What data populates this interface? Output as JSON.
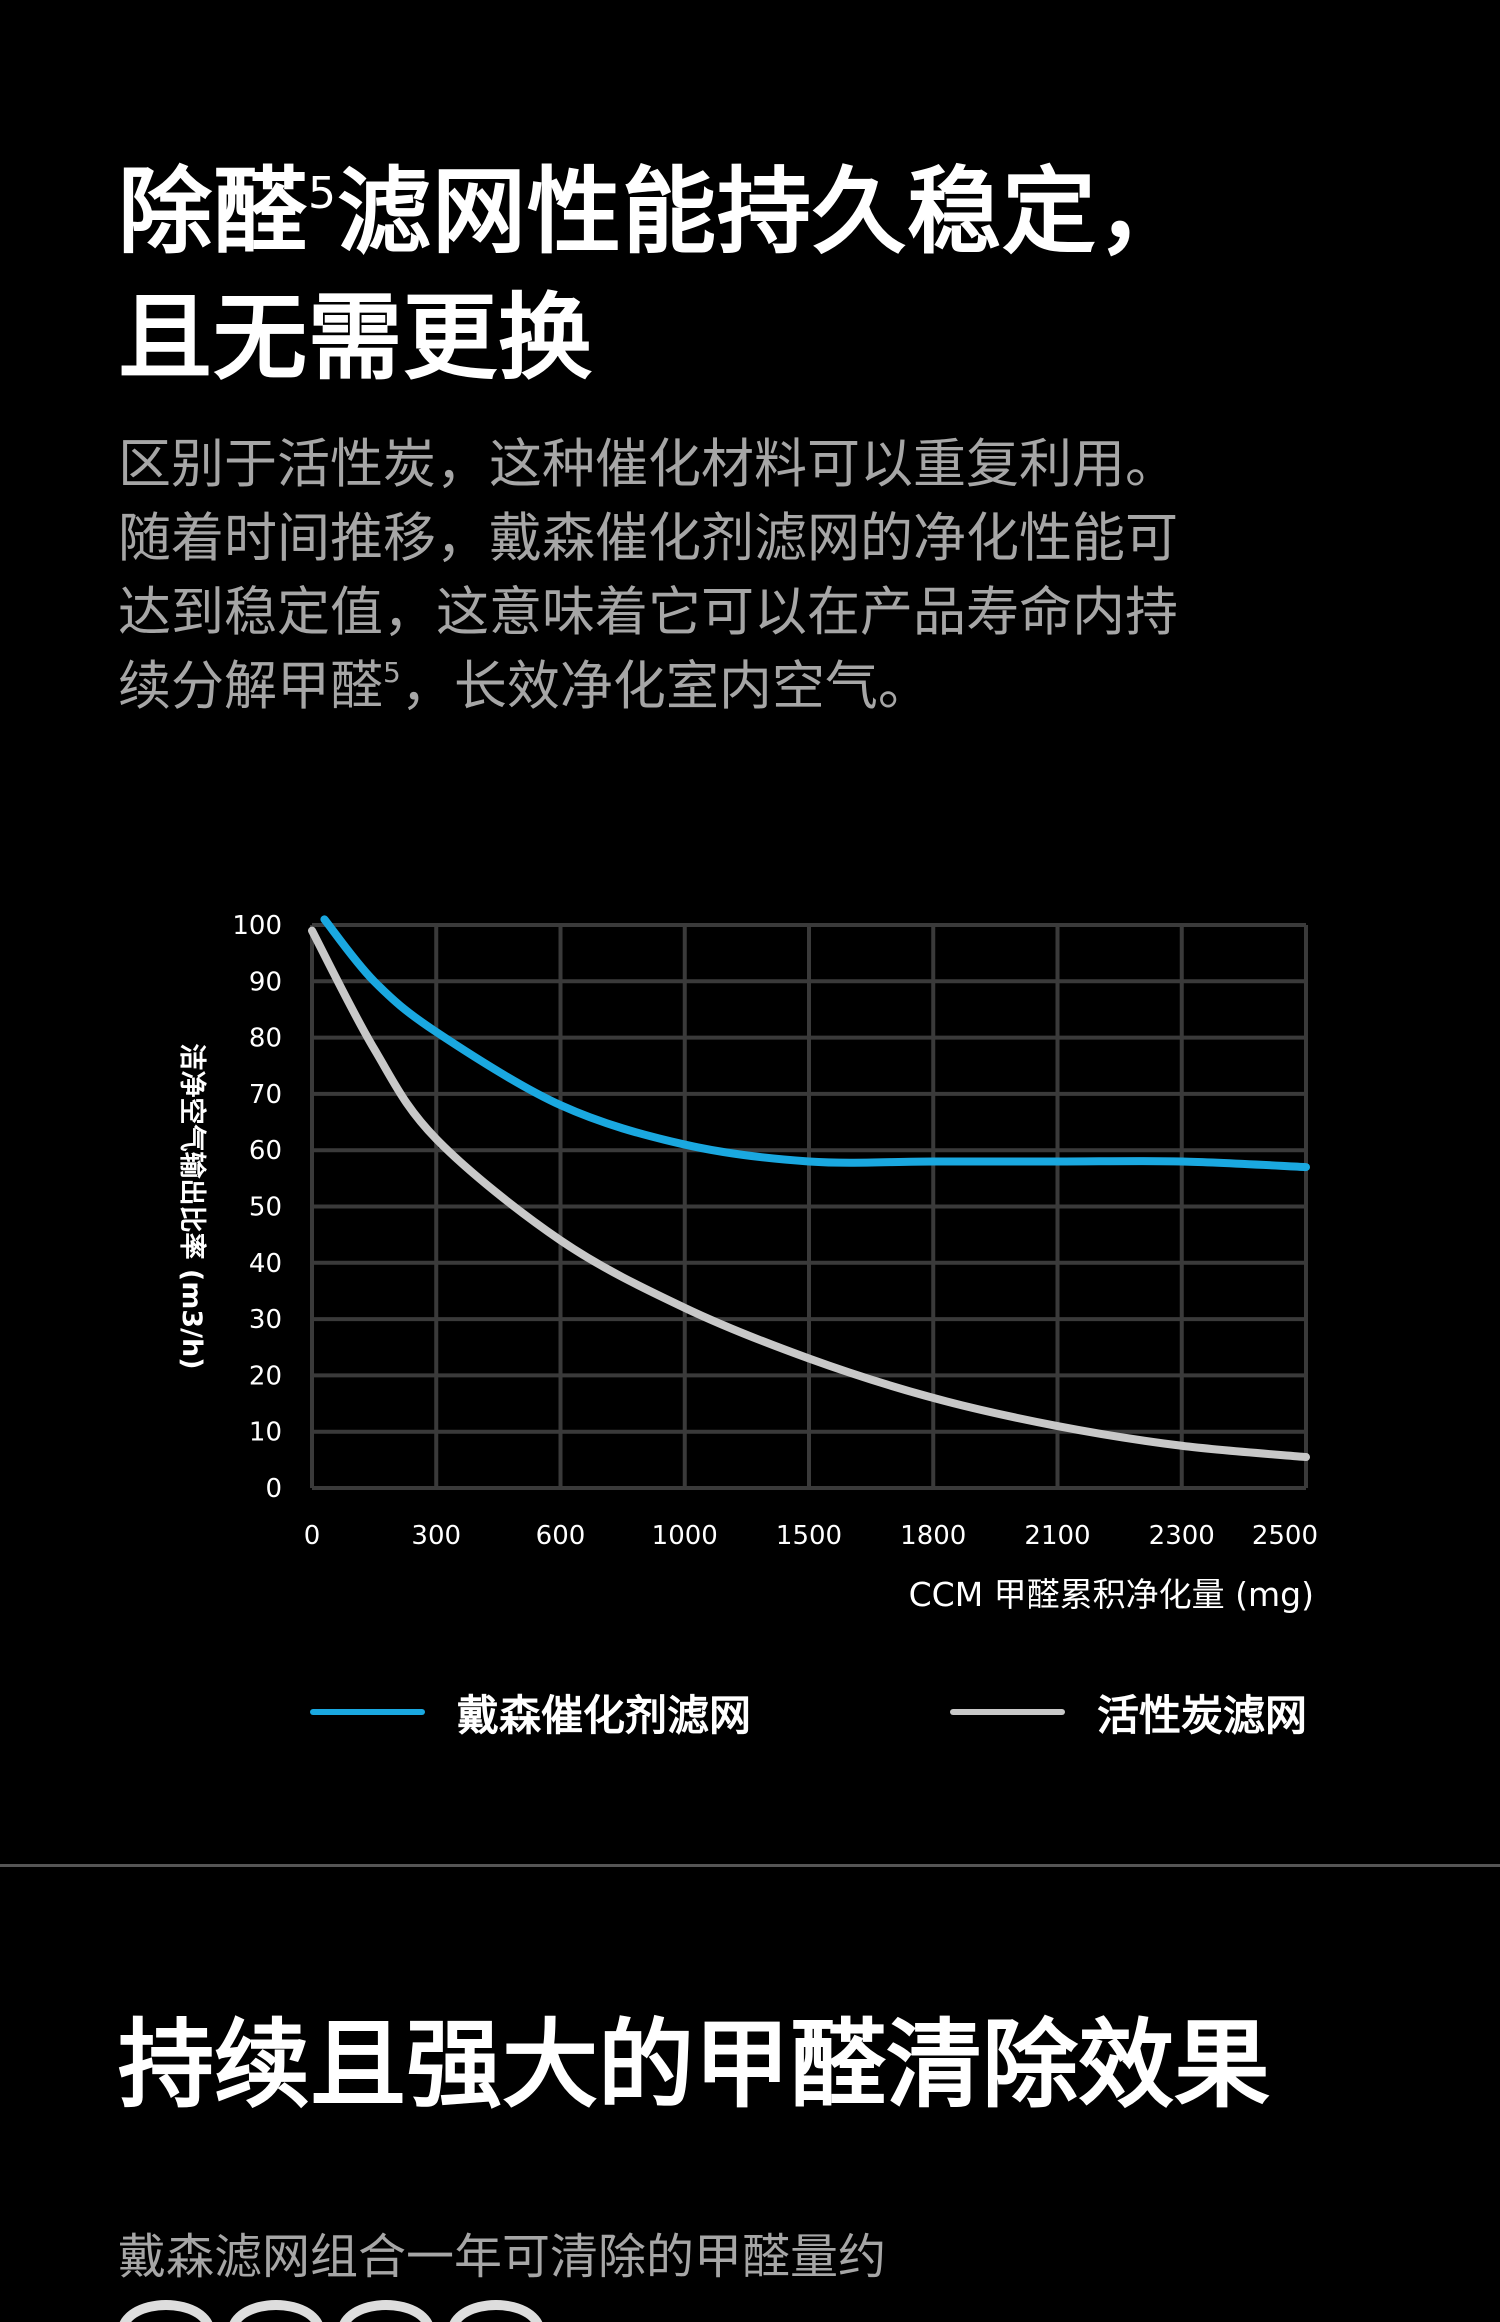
{
  "header": {
    "title_part1": "除醛",
    "title_sup": "5",
    "title_part2": "滤网性能持久稳定，",
    "title_line2": "且无需更换"
  },
  "description": {
    "part1": "区别于活性炭，这种催化材料可以重复利用。随着时间推移，戴森催化剂滤网的净化性能可达到稳定值，这意味着它可以在产品寿命内持续分解甲醛",
    "sup": "5",
    "part2": "，长效净化室内空气。"
  },
  "chart_data": {
    "type": "line",
    "ylabel": "洁净空气输出比率 (m3/h)",
    "xlabel": "CCM 甲醛累积净化量 (mg)",
    "categories": [
      "0",
      "300",
      "600",
      "1000",
      "1500",
      "1800",
      "2100",
      "2300",
      "2500"
    ],
    "yticks": [
      0,
      10,
      20,
      30,
      40,
      50,
      60,
      70,
      80,
      90,
      100
    ],
    "ylim": [
      0,
      100
    ],
    "grid": true,
    "series": [
      {
        "name": "戴森催化剂滤网",
        "color": "#1aa8e0",
        "points": [
          [
            0.1,
            101
          ],
          [
            0.5,
            90
          ],
          [
            1,
            81
          ],
          [
            2,
            68
          ],
          [
            3,
            61
          ],
          [
            4,
            58
          ],
          [
            5,
            58
          ],
          [
            6,
            58
          ],
          [
            7,
            58
          ],
          [
            8,
            57
          ]
        ]
      },
      {
        "name": "活性炭滤网",
        "color": "#c8c8c8",
        "points": [
          [
            0,
            99
          ],
          [
            0.5,
            78
          ],
          [
            1,
            62
          ],
          [
            2,
            44
          ],
          [
            3,
            32
          ],
          [
            4,
            23
          ],
          [
            5,
            16
          ],
          [
            6,
            11
          ],
          [
            7,
            7.5
          ],
          [
            8,
            5.5
          ]
        ]
      }
    ]
  },
  "legend": {
    "item1": "戴森催化剂滤网",
    "item2": "活性炭滤网"
  },
  "section2": {
    "title": "持续且强大的甲醛清除效果",
    "desc": "戴森滤网组合一年可清除的甲醛量约"
  }
}
